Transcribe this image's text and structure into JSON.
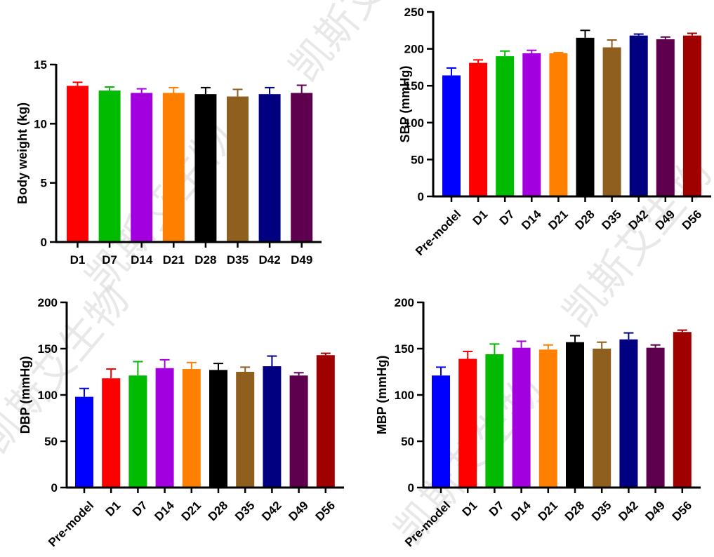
{
  "watermark": "凯斯艾生物",
  "colors": {
    "Pre-model": "#0000ff",
    "D1": "#ff0000",
    "D7": "#00bb00",
    "D14": "#a300e0",
    "D21": "#ff8000",
    "D28": "#000000",
    "D35": "#8f5f20",
    "D42": "#000080",
    "D49": "#5f004f",
    "D56": "#9f0000"
  },
  "chart_data": [
    {
      "id": "body-weight",
      "type": "bar",
      "title": "",
      "xlabel": "",
      "ylabel": "Body weight (kg)",
      "ylim": [
        0,
        15
      ],
      "yticks": [
        "0",
        "5",
        "10",
        "15"
      ],
      "categories": [
        "D1",
        "D7",
        "D14",
        "D21",
        "D28",
        "D35",
        "D42",
        "D49"
      ],
      "values": [
        13.2,
        12.8,
        12.6,
        12.6,
        12.5,
        12.3,
        12.5,
        12.6
      ],
      "error_upper": [
        13.5,
        13.1,
        12.95,
        13.05,
        13.05,
        12.9,
        13.05,
        13.25
      ],
      "grid": false,
      "xlabel_rotation": 0
    },
    {
      "id": "sbp",
      "type": "bar",
      "title": "",
      "xlabel": "",
      "ylabel": "SBP (mmHg)",
      "ylim": [
        0,
        250
      ],
      "yticks": [
        "0",
        "50",
        "100",
        "150",
        "200",
        "250"
      ],
      "categories": [
        "Pre-model",
        "D1",
        "D7",
        "D14",
        "D21",
        "D28",
        "D35",
        "D42",
        "D49",
        "D56"
      ],
      "values": [
        164,
        181,
        190,
        194,
        194,
        215,
        202,
        218,
        213,
        218
      ],
      "error_upper": [
        174,
        185,
        197,
        198,
        195,
        225,
        212,
        220,
        216,
        221
      ],
      "grid": false,
      "xlabel_rotation": -45
    },
    {
      "id": "dbp",
      "type": "bar",
      "title": "",
      "xlabel": "",
      "ylabel": "DBP (mmHg)",
      "ylim": [
        0,
        200
      ],
      "yticks": [
        "0",
        "50",
        "100",
        "150",
        "200"
      ],
      "categories": [
        "Pre-model",
        "D1",
        "D7",
        "D14",
        "D21",
        "D28",
        "D35",
        "D42",
        "D49",
        "D56"
      ],
      "values": [
        98,
        118,
        121,
        129,
        128,
        127,
        125,
        131,
        121,
        143
      ],
      "error_upper": [
        107,
        128,
        136,
        138,
        135,
        134,
        130,
        142,
        124,
        145
      ],
      "grid": false,
      "xlabel_rotation": -45
    },
    {
      "id": "mbp",
      "type": "bar",
      "title": "",
      "xlabel": "",
      "ylabel": "MBP (mmHg)",
      "ylim": [
        0,
        200
      ],
      "yticks": [
        "0",
        "50",
        "100",
        "150",
        "200"
      ],
      "categories": [
        "Pre-model",
        "D1",
        "D7",
        "D14",
        "D21",
        "D28",
        "D35",
        "D42",
        "D49",
        "D56"
      ],
      "values": [
        121,
        139,
        144,
        151,
        149,
        157,
        150,
        160,
        151,
        168
      ],
      "error_upper": [
        130,
        147,
        155,
        158,
        154,
        164,
        157,
        167,
        154,
        170
      ],
      "grid": false,
      "xlabel_rotation": -45
    }
  ]
}
